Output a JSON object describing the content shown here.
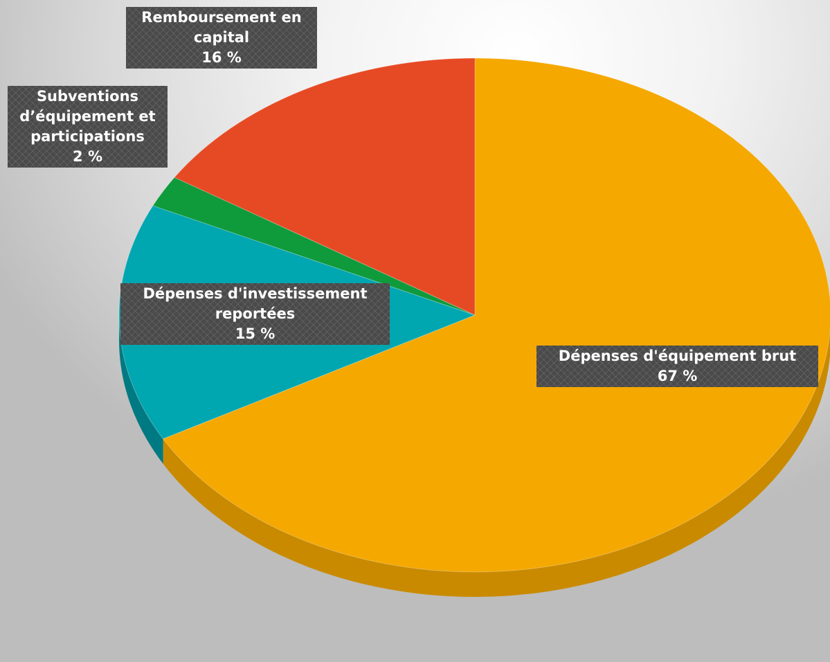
{
  "chart_data": {
    "type": "pie",
    "three_d": true,
    "legend": "none",
    "slices": [
      {
        "name_lines": [
          "Dépenses d'équipement brut"
        ],
        "value": 67,
        "value_label": "67 %",
        "color": "#f5a800",
        "side_color": "#c98a00"
      },
      {
        "name_lines": [
          "Dépenses d'investissement",
          "reportées"
        ],
        "value": 15,
        "value_label": "15 %",
        "color": "#00a6b0",
        "side_color": "#007a82"
      },
      {
        "name_lines": [
          "Subventions",
          "d’équipement et",
          "participations"
        ],
        "value": 2,
        "value_label": "2 %",
        "color": "#0f9a3c",
        "side_color": "#0a6e2b"
      },
      {
        "name_lines": [
          "Remboursement en",
          "capital"
        ],
        "value": 16,
        "value_label": "16 %",
        "color": "#e64a24",
        "side_color": "#a83418"
      }
    ],
    "label_style": {
      "background": "#4a4a4a",
      "text_color": "#ffffff"
    }
  }
}
